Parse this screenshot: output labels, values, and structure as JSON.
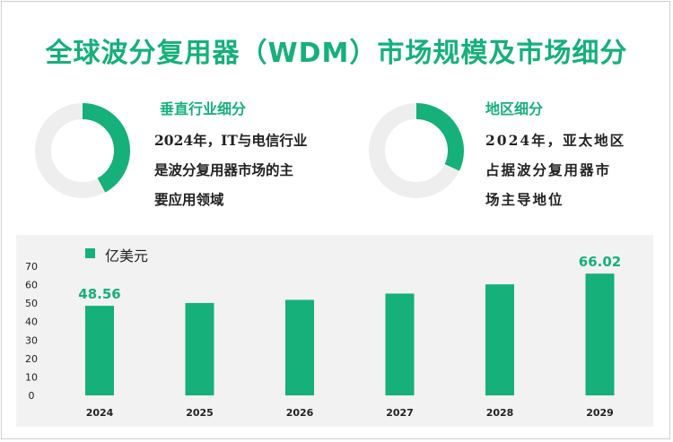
{
  "title": "全球波分复用器（WDM）市场规模及市场细分",
  "segments": [
    {
      "title": "垂直行业细分",
      "lines": [
        "2024年，IT与电信行业",
        "是波分复用器市场的主",
        "要应用领域"
      ],
      "share": 0.42
    },
    {
      "title": "地区细分",
      "lines": [
        "2024年，亚太地区",
        "占据波分复用器市",
        "场主导地位"
      ],
      "share": 0.32
    }
  ],
  "colors": {
    "accent": "#16b07a",
    "track": "#eeeeee"
  },
  "chart_data": {
    "type": "bar",
    "categories": [
      "2024",
      "2025",
      "2026",
      "2027",
      "2028",
      "2029"
    ],
    "series": [
      {
        "name": "亿美元",
        "values": [
          48.56,
          50.1,
          51.8,
          55.2,
          60.2,
          66.02
        ]
      }
    ],
    "data_labels": [
      "48.56",
      "",
      "",
      "",
      "",
      "66.02"
    ],
    "yticks": [
      "70",
      "60",
      "50",
      "40",
      "30",
      "20",
      "10",
      "0"
    ],
    "ylim": [
      0,
      70
    ],
    "legend": "top-left",
    "grid": false
  }
}
